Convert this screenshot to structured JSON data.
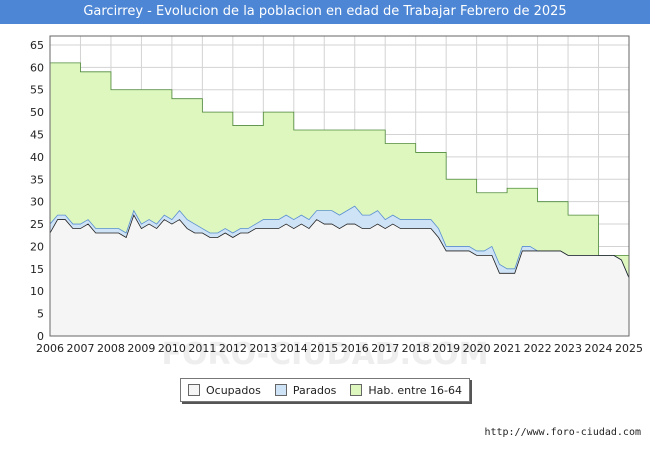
{
  "header": {
    "title": "Garcirrey - Evolucion de la poblacion en edad de Trabajar Febrero de 2025"
  },
  "footer": {
    "source": "http://www.foro-ciudad.com"
  },
  "watermark": "FORO-CIUDAD.COM",
  "chart_data": {
    "type": "area",
    "title": "Garcirrey - Evolucion de la poblacion en edad de Trabajar Febrero de 2025",
    "xlabel": "",
    "ylabel": "",
    "xlim": [
      2006,
      2025
    ],
    "ylim": [
      0,
      67
    ],
    "x_ticks": [
      "2006",
      "2007",
      "2008",
      "2009",
      "2010",
      "2011",
      "2012",
      "2013",
      "2014",
      "2015",
      "2016",
      "2017",
      "2018",
      "2019",
      "2020",
      "2021",
      "2022",
      "2023",
      "2024",
      "2025"
    ],
    "y_ticks": [
      0,
      5,
      10,
      15,
      20,
      25,
      30,
      35,
      40,
      45,
      50,
      55,
      60,
      65
    ],
    "grid": true,
    "legend_position": "bottom-center",
    "colors": {
      "hab": "#ddf7bf",
      "hab_line": "#4f8a3a",
      "parados": "#cfe3f7",
      "parados_line": "#5a8fd0",
      "ocupados": "#f5f5f5",
      "ocupados_line": "#222222",
      "title_bg": "#4d86d5"
    },
    "series": [
      {
        "name": "Hab. entre 16-64",
        "x": [
          2006,
          2007,
          2007,
          2008,
          2008,
          2010,
          2010,
          2011,
          2011,
          2012,
          2012,
          2013,
          2013,
          2014,
          2014,
          2017,
          2017,
          2018,
          2018,
          2019,
          2019,
          2020,
          2020,
          2021,
          2021,
          2022,
          2022,
          2023,
          2023,
          2024,
          2024,
          2025
        ],
        "values": [
          61,
          61,
          59,
          59,
          55,
          55,
          53,
          53,
          50,
          50,
          47,
          47,
          50,
          50,
          46,
          46,
          43,
          43,
          41,
          41,
          35,
          35,
          32,
          32,
          33,
          33,
          30,
          30,
          27,
          27,
          18,
          18
        ]
      },
      {
        "name": "Parados",
        "x": [
          2006,
          2006.25,
          2006.5,
          2006.75,
          2007,
          2007.25,
          2007.5,
          2007.75,
          2008,
          2008.25,
          2008.5,
          2008.75,
          2009,
          2009.25,
          2009.5,
          2009.75,
          2010,
          2010.25,
          2010.5,
          2010.75,
          2011,
          2011.25,
          2011.5,
          2011.75,
          2012,
          2012.25,
          2012.5,
          2012.75,
          2013,
          2013.25,
          2013.5,
          2013.75,
          2014,
          2014.25,
          2014.5,
          2014.75,
          2015,
          2015.25,
          2015.5,
          2015.75,
          2016,
          2016.25,
          2016.5,
          2016.75,
          2017,
          2017.25,
          2017.5,
          2017.75,
          2018,
          2018.25,
          2018.5,
          2018.75,
          2019,
          2019.25,
          2019.5,
          2019.75,
          2020,
          2020.25,
          2020.5,
          2020.75,
          2021,
          2021.25,
          2021.5,
          2021.75,
          2022,
          2022.25,
          2022.5,
          2022.75,
          2023,
          2023.25,
          2023.5,
          2023.75,
          2024,
          2024.25,
          2024.5,
          2024.75,
          2025
        ],
        "values": [
          2,
          1,
          1,
          1,
          1,
          1,
          1,
          1,
          1,
          1,
          1,
          1,
          1,
          1,
          1,
          1,
          1,
          2,
          2,
          2,
          1,
          1,
          1,
          1,
          1,
          1,
          1,
          1,
          2,
          2,
          2,
          2,
          2,
          2,
          2,
          2,
          3,
          3,
          3,
          3,
          4,
          3,
          3,
          3,
          2,
          2,
          2,
          2,
          2,
          2,
          2,
          2,
          1,
          1,
          1,
          1,
          1,
          1,
          2,
          2,
          1,
          1,
          1,
          1,
          0,
          0,
          0,
          0,
          0,
          0,
          0,
          0,
          0,
          0,
          0,
          0,
          0
        ]
      },
      {
        "name": "Ocupados",
        "x": [
          2006,
          2006.25,
          2006.5,
          2006.75,
          2007,
          2007.25,
          2007.5,
          2007.75,
          2008,
          2008.25,
          2008.5,
          2008.75,
          2009,
          2009.25,
          2009.5,
          2009.75,
          2010,
          2010.25,
          2010.5,
          2010.75,
          2011,
          2011.25,
          2011.5,
          2011.75,
          2012,
          2012.25,
          2012.5,
          2012.75,
          2013,
          2013.25,
          2013.5,
          2013.75,
          2014,
          2014.25,
          2014.5,
          2014.75,
          2015,
          2015.25,
          2015.5,
          2015.75,
          2016,
          2016.25,
          2016.5,
          2016.75,
          2017,
          2017.25,
          2017.5,
          2017.75,
          2018,
          2018.25,
          2018.5,
          2018.75,
          2019,
          2019.25,
          2019.5,
          2019.75,
          2020,
          2020.25,
          2020.5,
          2020.75,
          2021,
          2021.25,
          2021.5,
          2021.75,
          2022,
          2022.25,
          2022.5,
          2022.75,
          2023,
          2023.25,
          2023.5,
          2023.75,
          2024,
          2024.25,
          2024.5,
          2024.75,
          2025
        ],
        "values": [
          23,
          26,
          26,
          24,
          24,
          25,
          23,
          23,
          23,
          23,
          22,
          27,
          24,
          25,
          24,
          26,
          25,
          26,
          24,
          23,
          23,
          22,
          22,
          23,
          22,
          23,
          23,
          24,
          24,
          24,
          24,
          25,
          24,
          25,
          24,
          26,
          25,
          25,
          24,
          25,
          25,
          24,
          24,
          25,
          24,
          25,
          24,
          24,
          24,
          24,
          24,
          22,
          19,
          19,
          19,
          19,
          18,
          18,
          18,
          14,
          14,
          14,
          19,
          19,
          19,
          19,
          19,
          19,
          18,
          18,
          18,
          18,
          18,
          18,
          18,
          17,
          13
        ]
      }
    ]
  }
}
